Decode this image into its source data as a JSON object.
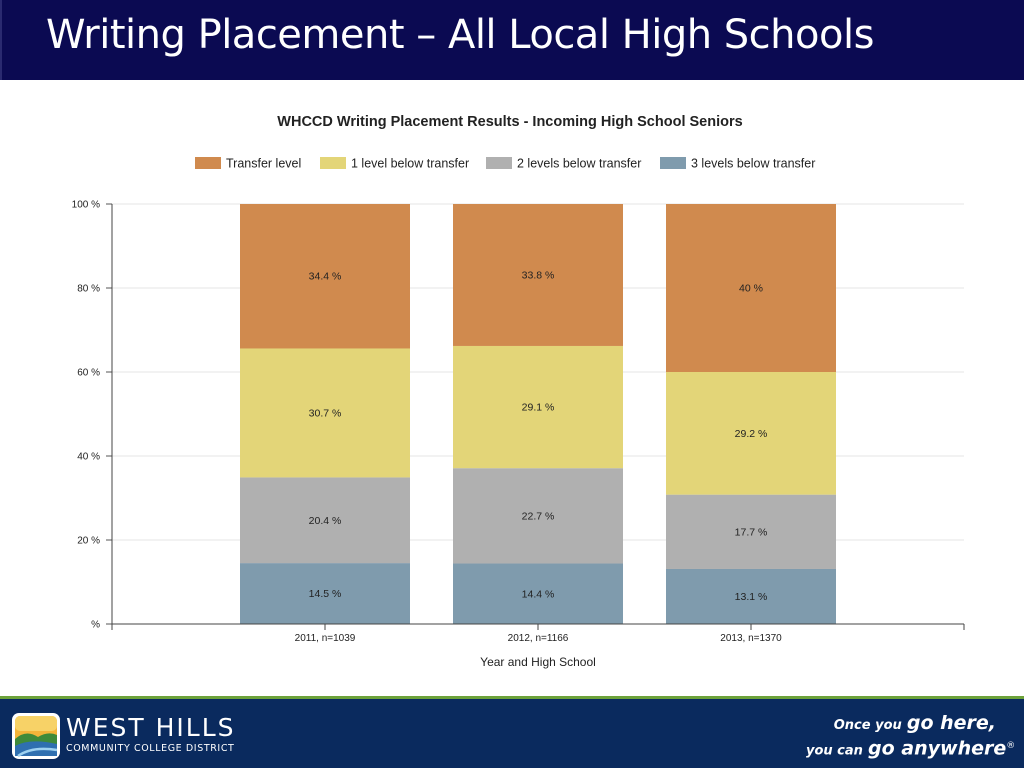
{
  "slide": {
    "title": "Writing Placement – All Local High Schools"
  },
  "chart_data": {
    "type": "bar",
    "stacked": true,
    "title": "WHCCD Writing Placement Results - Incoming High School Seniors",
    "xlabel": "Year and High School",
    "ylabel": "",
    "ylim": [
      0,
      100
    ],
    "yticks": [
      {
        "value": 0,
        "label": "%"
      },
      {
        "value": 20,
        "label": "20 %"
      },
      {
        "value": 40,
        "label": "40 %"
      },
      {
        "value": 60,
        "label": "60 %"
      },
      {
        "value": 80,
        "label": "80 %"
      },
      {
        "value": 100,
        "label": "100 %"
      }
    ],
    "grid": true,
    "legend_position": "top",
    "categories": [
      "2011, n=1039",
      "2012, n=1166",
      "2013, n=1370"
    ],
    "series": [
      {
        "name": "Transfer level",
        "color": "#d08a4e",
        "values": [
          34.4,
          33.8,
          40
        ],
        "labels": [
          "34.4 %",
          "33.8 %",
          "40 %"
        ]
      },
      {
        "name": "1 level below transfer",
        "color": "#e3d578",
        "values": [
          30.7,
          29.1,
          29.2
        ],
        "labels": [
          "30.7 %",
          "29.1 %",
          "29.2 %"
        ]
      },
      {
        "name": "2 levels below transfer",
        "color": "#b0b0b0",
        "values": [
          20.4,
          22.7,
          17.7
        ],
        "labels": [
          "20.4 %",
          "22.7 %",
          "17.7 %"
        ]
      },
      {
        "name": "3 levels below transfer",
        "color": "#7f9bad",
        "values": [
          14.5,
          14.4,
          13.1
        ],
        "labels": [
          "14.5 %",
          "14.4 %",
          "13.1 %"
        ]
      }
    ]
  },
  "footer": {
    "logo_name": "WEST HILLS",
    "logo_sub": "COMMUNITY COLLEGE DISTRICT",
    "tagline_1_small": "Once you",
    "tagline_1_big": "go here,",
    "tagline_2_small": "you can",
    "tagline_2_big": "go anywhere",
    "tagline_mark": "®"
  }
}
